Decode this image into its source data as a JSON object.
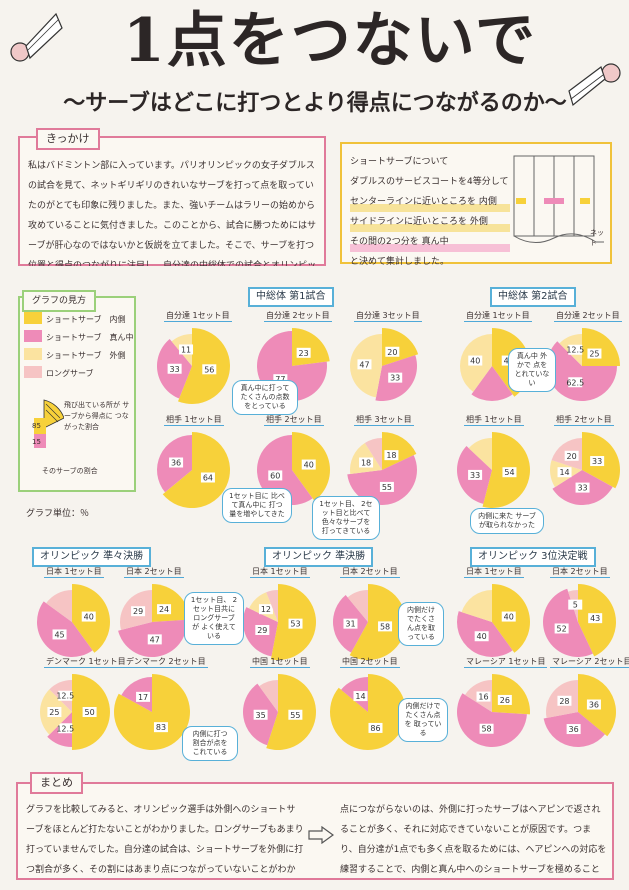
{
  "header": {
    "title": "1点をつないで",
    "subtitle": "～サーブはどこに打つとより得点につながるのか～"
  },
  "motivation": {
    "tag": "きっかけ",
    "text": "私はバドミントン部に入っています。パリオリンピックの女子ダブルスの試合を見て、ネットギリギリのきれいなサーブを打って点を取っていたのがとても印象に残りました。また、強いチームはラリーの始めから攻めていることに気付きました。このことから、試合に勝つためにはサーブが肝心なのではないかと仮説を立てました。そこで、サーブを打つ位置と得点のつながりに注目し、自分達の中総体での試合とオリンピックの試合を比べてみました。"
  },
  "method": {
    "lines": [
      "ショートサーブについて",
      "ダブルスのサービスコートを4等分して",
      "センターラインに近いところを 内側",
      "サイドラインに近いところを 外側",
      "その間の2つ分を 真ん中",
      "と決めて集計しました。"
    ],
    "net_label": "ネット"
  },
  "legend": {
    "tag": "グラフの見方",
    "items": [
      {
        "label": "ショートサーブ　内側",
        "color": "#f7d13a"
      },
      {
        "label": "ショートサーブ　真ん中",
        "color": "#ee8bb8"
      },
      {
        "label": "ショートサーブ　外側",
        "color": "#fbe3a0"
      },
      {
        "label": "ロングサーブ",
        "color": "#f6c4c4"
      }
    ],
    "example_values": [
      "85",
      "15"
    ],
    "protrude_note": "飛び出ている所が サーブから得点に つながった割合",
    "ratio_note": "そのサーブの割合",
    "unit": "グラフ単位：％"
  },
  "sections": [
    {
      "title": "中総体 第1試合"
    },
    {
      "title": "中総体 第2試合"
    },
    {
      "title": "オリンピック 準々決勝"
    },
    {
      "title": "オリンピック 準決勝"
    },
    {
      "title": "オリンピック 3位決定戦"
    }
  ],
  "chart_data": [
    {
      "type": "pie",
      "title": "自分達 1セット目",
      "values": [
        56,
        33,
        11
      ],
      "colors": [
        "#f7d13a",
        "#ee8bb8",
        "#fbe3a0"
      ],
      "labels": [
        "56",
        "33",
        "11"
      ]
    },
    {
      "type": "pie",
      "title": "自分達 2セット目",
      "values": [
        23,
        77
      ],
      "colors": [
        "#f7d13a",
        "#ee8bb8"
      ],
      "labels": [
        "23",
        "77"
      ]
    },
    {
      "type": "pie",
      "title": "自分達 3セット目",
      "values": [
        20,
        33,
        47
      ],
      "colors": [
        "#f7d13a",
        "#ee8bb8",
        "#fbe3a0"
      ],
      "labels": [
        "20",
        "33",
        "47"
      ]
    },
    {
      "type": "pie",
      "title": "自分達 1セット目",
      "values": [
        40,
        20,
        40
      ],
      "colors": [
        "#f7d13a",
        "#ee8bb8",
        "#fbe3a0"
      ],
      "labels": [
        "40",
        "",
        "40"
      ]
    },
    {
      "type": "pie",
      "title": "自分達 2セット目",
      "values": [
        25,
        62.5,
        12.5
      ],
      "colors": [
        "#f7d13a",
        "#ee8bb8",
        "#fbe3a0"
      ],
      "labels": [
        "25",
        "62.5",
        "12.5"
      ]
    },
    {
      "type": "pie",
      "title": "相手 1セット目",
      "values": [
        64,
        36
      ],
      "colors": [
        "#f7d13a",
        "#ee8bb8"
      ],
      "labels": [
        "64",
        "36"
      ]
    },
    {
      "type": "pie",
      "title": "相手 2セット目",
      "values": [
        40,
        60
      ],
      "colors": [
        "#f7d13a",
        "#ee8bb8"
      ],
      "labels": [
        "40",
        "60"
      ]
    },
    {
      "type": "pie",
      "title": "相手 3セット目",
      "values": [
        18,
        55,
        18,
        9
      ],
      "colors": [
        "#f7d13a",
        "#ee8bb8",
        "#fbe3a0",
        "#f6c4c4"
      ],
      "labels": [
        "18",
        "55",
        "18",
        ""
      ]
    },
    {
      "type": "pie",
      "title": "相手 1セット目",
      "values": [
        54,
        33,
        13
      ],
      "colors": [
        "#f7d13a",
        "#ee8bb8",
        "#fbe3a0"
      ],
      "labels": [
        "54",
        "33",
        ""
      ]
    },
    {
      "type": "pie",
      "title": "相手 2セット目",
      "values": [
        33,
        33,
        14,
        20
      ],
      "colors": [
        "#f7d13a",
        "#ee8bb8",
        "#fbe3a0",
        "#f6c4c4"
      ],
      "labels": [
        "33",
        "33",
        "14",
        "20"
      ]
    },
    {
      "type": "pie",
      "title": "日本 1セット目",
      "values": [
        40,
        45,
        15
      ],
      "colors": [
        "#f7d13a",
        "#ee8bb8",
        "#f6c4c4"
      ],
      "labels": [
        "40",
        "45",
        ""
      ]
    },
    {
      "type": "pie",
      "title": "日本 2セット目",
      "values": [
        24,
        47,
        29
      ],
      "colors": [
        "#f7d13a",
        "#ee8bb8",
        "#f6c4c4"
      ],
      "labels": [
        "24",
        "47",
        "29"
      ]
    },
    {
      "type": "pie",
      "title": "日本 1セット目",
      "values": [
        53,
        29,
        12,
        6
      ],
      "colors": [
        "#f7d13a",
        "#ee8bb8",
        "#fbe3a0",
        "#f6c4c4"
      ],
      "labels": [
        "53",
        "29",
        "12",
        ""
      ]
    },
    {
      "type": "pie",
      "title": "日本 2セット目",
      "values": [
        58,
        31,
        11
      ],
      "colors": [
        "#f7d13a",
        "#ee8bb8",
        "#f6c4c4"
      ],
      "labels": [
        "58",
        "31",
        ""
      ]
    },
    {
      "type": "pie",
      "title": "日本 1セット目",
      "values": [
        40,
        40,
        20
      ],
      "colors": [
        "#f7d13a",
        "#ee8bb8",
        "#fbe3a0"
      ],
      "labels": [
        "40",
        "40",
        ""
      ]
    },
    {
      "type": "pie",
      "title": "日本 2セット目",
      "values": [
        43,
        52,
        5
      ],
      "colors": [
        "#f7d13a",
        "#ee8bb8",
        "#f6c4c4"
      ],
      "labels": [
        "43",
        "52",
        "5"
      ]
    },
    {
      "type": "pie",
      "title": "デンマーク 1セット目",
      "values": [
        50,
        12.5,
        25,
        12.5
      ],
      "colors": [
        "#f7d13a",
        "#ee8bb8",
        "#fbe3a0",
        "#f6c4c4"
      ],
      "labels": [
        "50",
        "12.5",
        "25",
        "12.5"
      ]
    },
    {
      "type": "pie",
      "title": "デンマーク 2セット目",
      "values": [
        83,
        17
      ],
      "colors": [
        "#f7d13a",
        "#ee8bb8"
      ],
      "labels": [
        "83",
        "17"
      ]
    },
    {
      "type": "pie",
      "title": "中国 1セット目",
      "values": [
        55,
        35,
        10
      ],
      "colors": [
        "#f7d13a",
        "#ee8bb8",
        "#f6c4c4"
      ],
      "labels": [
        "55",
        "35",
        ""
      ]
    },
    {
      "type": "pie",
      "title": "中国 2セット目",
      "values": [
        86,
        14
      ],
      "colors": [
        "#f7d13a",
        "#ee8bb8"
      ],
      "labels": [
        "86",
        "14"
      ]
    },
    {
      "type": "pie",
      "title": "マレーシア 1セット目",
      "values": [
        26,
        58,
        16
      ],
      "colors": [
        "#f7d13a",
        "#ee8bb8",
        "#f6c4c4"
      ],
      "labels": [
        "26",
        "58",
        "16"
      ]
    },
    {
      "type": "pie",
      "title": "マレーシア 2セット目",
      "values": [
        36,
        36,
        28
      ],
      "colors": [
        "#f7d13a",
        "#ee8bb8",
        "#f6c4c4"
      ],
      "labels": [
        "36",
        "36",
        "28"
      ]
    }
  ],
  "notes": [
    "真ん中に打ってたくさんの点数をとっている",
    "真ん中 外かで 点を とれていない",
    "1セット目に 比べて真ん中に 打つ量を増やしてきた",
    "1セット目、 2セット目と比べて 色々なサーブを 打ってきている",
    "内側に来た サーブが取られなかった",
    "1セット目、 2セット目共に ロングサーブが よく使えている",
    "内側だけでたくさん点を取っている",
    "内側に打った 割合が大きくて 点に生かしている",
    "内側に打つ 割合が点を これている",
    "内側だけで たくさん点を 取っている"
  ],
  "summary": {
    "tag": "まとめ",
    "left_text": "グラフを比較してみると、オリンピック選手は外側へのショートサーブをほとんど打たないことがわかりました。ロングサーブもあまり打っていませんでした。自分達の試合は、ショートサーブを外側に打つ割合が多く、その割にはあまり点につながっていないことがわかりました。",
    "right_text": "点につながらないのは、外側に打ったサーブはヘアピンで返されることが多く、それに対応できていないことが原因です。つまり、自分達が1点でも多く点を取るためには、ヘアピンへの対応を練習することで、内側と真ん中へのショートサーブを極めることが必要だと思いました。"
  }
}
